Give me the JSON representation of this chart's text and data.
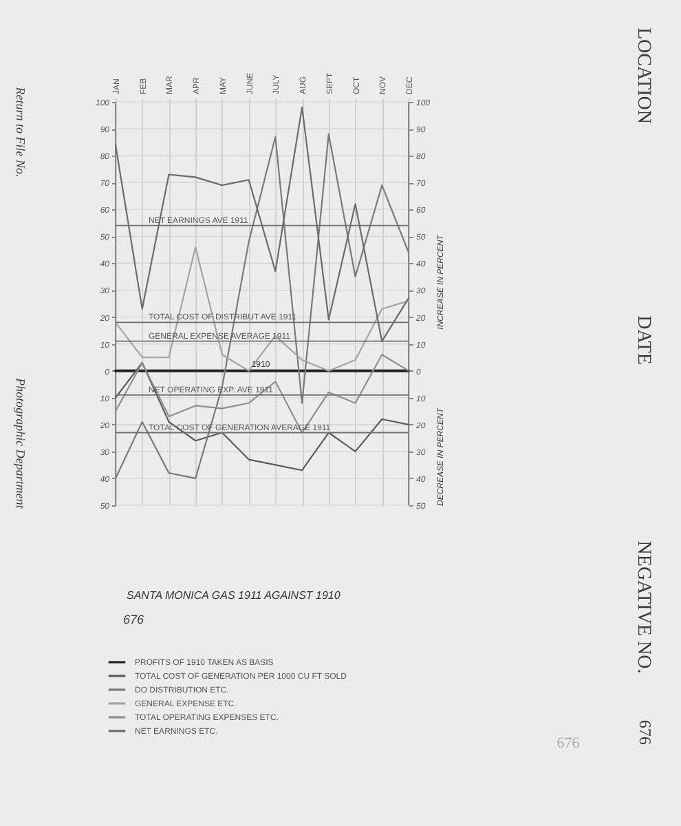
{
  "chart_data": {
    "type": "line",
    "title": "SANTA MONICA GAS 1911 AGAINST 1910",
    "categories": [
      "JAN",
      "FEB",
      "MAR",
      "APR",
      "MAY",
      "JUNE",
      "JULY",
      "AUG",
      "SEPT",
      "OCT",
      "NOV",
      "DEC"
    ],
    "series": [
      {
        "name": "PROFITS OF 1910 TAKEN AS BASIS",
        "color": "#222222",
        "values": [
          0,
          0,
          0,
          0,
          0,
          0,
          0,
          0,
          0,
          0,
          0,
          0
        ]
      },
      {
        "name": "TOTAL COST OF GENERATION PER 1000 CU FT SOLD",
        "color": "#5c5c5c",
        "values": [
          -10,
          3,
          -19,
          -26,
          -23,
          -33,
          -35,
          -37,
          -23,
          -30,
          -18,
          -20
        ]
      },
      {
        "name": "DO DISTRIBUTION ETC.",
        "color": "#7a7a7a",
        "values": [
          -40,
          -19,
          -38,
          -40,
          -6,
          48,
          87,
          -12,
          88,
          35,
          69,
          44
        ]
      },
      {
        "name": "GENERAL EXPENSE ETC.",
        "color": "#a3a3a3",
        "values": [
          18,
          5,
          5,
          46,
          6,
          0,
          13,
          4,
          0,
          4,
          23,
          26
        ]
      },
      {
        "name": "TOTAL OPERATING EXPENSES ETC.",
        "color": "#8e8e8e",
        "values": [
          -15,
          3,
          -17,
          -13,
          -14,
          -12,
          -4,
          -23,
          -8,
          -12,
          6,
          0
        ]
      },
      {
        "name": "NET EARNINGS ETC.",
        "color": "#6b6b6b",
        "values": [
          84,
          23,
          73,
          72,
          69,
          71,
          37,
          98,
          19,
          62,
          11,
          27
        ]
      }
    ],
    "ylim": [
      -50,
      100
    ],
    "yticks": [
      100,
      90,
      80,
      70,
      60,
      50,
      40,
      30,
      20,
      10,
      0,
      {
        "value": -10,
        "label": "10"
      },
      {
        "value": -20,
        "label": "20"
      },
      {
        "value": -30,
        "label": "30"
      },
      {
        "value": -40,
        "label": "40"
      },
      {
        "value": -50,
        "label": "50"
      }
    ],
    "y2lim": [
      -50,
      100
    ],
    "y2ticks": [
      100,
      90,
      80,
      70,
      60,
      50,
      40,
      30,
      20,
      10,
      0,
      {
        "value": -10,
        "label": "10"
      },
      {
        "value": -20,
        "label": "20"
      },
      {
        "value": -30,
        "label": "30"
      },
      {
        "value": -40,
        "label": "40"
      },
      {
        "value": -50,
        "label": "50"
      }
    ],
    "ref_lines": [
      {
        "axis": "y",
        "value": 54,
        "label": "NET EARNINGS AVE 1911"
      },
      {
        "axis": "y",
        "value": 18,
        "label": "TOTAL COST OF DISTRIBUT AVE 1911"
      },
      {
        "axis": "y",
        "value": 11,
        "label": "GENERAL EXPENSE AVERAGE 1911"
      },
      {
        "axis": "y",
        "value": -9,
        "label": "NET OPERATING EXP. AVE 1911"
      },
      {
        "axis": "y",
        "value": -23,
        "label": "TOTAL COST OF GENERATION AVERAGE 1911"
      }
    ],
    "annotations": [
      {
        "text": "1910",
        "x": "JULY",
        "y": 0
      },
      "676",
      "INCREASE IN PERCENT",
      "DECREASE IN PERCENT",
      "Return to File No.",
      "Photographic Department",
      "LOCATION",
      "DATE",
      "NEGATIVE NO.",
      "676",
      "676"
    ],
    "grid": true,
    "legend": "bottom",
    "line_style": "solid"
  }
}
